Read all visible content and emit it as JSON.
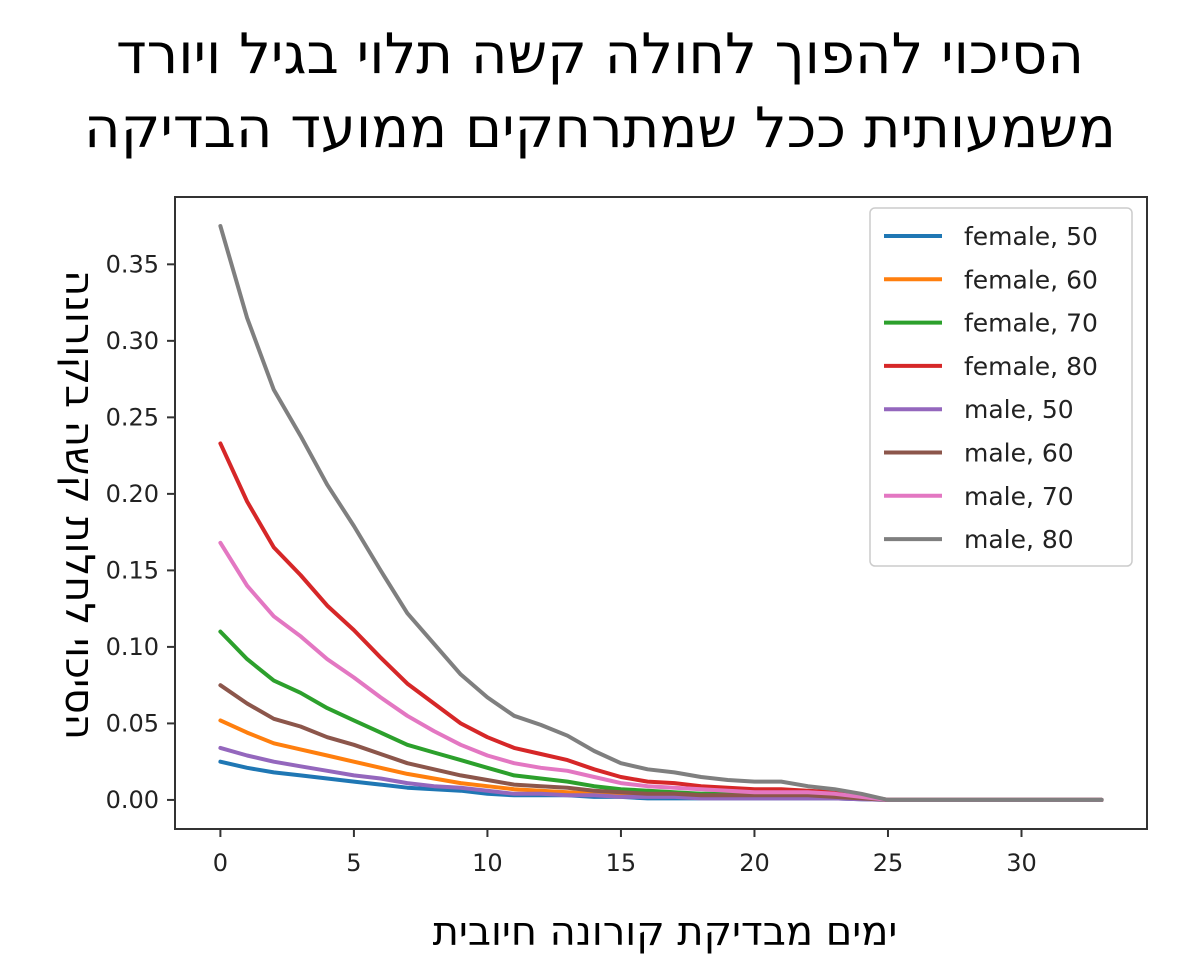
{
  "title_lines": [
    "הסיכוי להפוך לחולה קשה תלוי בגיל ויורד",
    "משמעותית ככל שמתרחקים ממועד הבדיקה"
  ],
  "chart_data": {
    "type": "line",
    "xlabel": "ימים מבדיקת קורונה חיובית",
    "ylabel": "הסיכוי לחלות קשה בקורונה",
    "xlim": [
      -1.7,
      34.7
    ],
    "ylim": [
      -0.019,
      0.394
    ],
    "xticks": [
      0,
      5,
      10,
      15,
      20,
      25,
      30
    ],
    "yticks": [
      0.0,
      0.05,
      0.1,
      0.15,
      0.2,
      0.25,
      0.3,
      0.35
    ],
    "ytick_labels": [
      "0.00",
      "0.05",
      "0.10",
      "0.15",
      "0.20",
      "0.25",
      "0.30",
      "0.35"
    ],
    "grid": false,
    "legend_position": "top-right",
    "x": [
      0,
      1,
      2,
      3,
      4,
      5,
      6,
      7,
      8,
      9,
      10,
      11,
      12,
      13,
      14,
      15,
      16,
      17,
      18,
      19,
      20,
      21,
      22,
      23,
      24,
      25,
      26,
      27,
      28,
      29,
      30,
      31,
      32,
      33
    ],
    "series": [
      {
        "name": "female, 50",
        "color": "#1f77b4",
        "values": [
          0.025,
          0.021,
          0.018,
          0.016,
          0.014,
          0.012,
          0.01,
          0.008,
          0.007,
          0.006,
          0.004,
          0.003,
          0.003,
          0.003,
          0.002,
          0.002,
          0.001,
          0.001,
          0.001,
          0.001,
          0.001,
          0.001,
          0.001,
          0.001,
          0.0005,
          0,
          0,
          0,
          0,
          0,
          0,
          0,
          0,
          0
        ]
      },
      {
        "name": "female, 60",
        "color": "#ff7f0e",
        "values": [
          0.052,
          0.044,
          0.037,
          0.033,
          0.029,
          0.025,
          0.021,
          0.017,
          0.014,
          0.011,
          0.009,
          0.007,
          0.006,
          0.005,
          0.004,
          0.003,
          0.003,
          0.003,
          0.002,
          0.002,
          0.002,
          0.002,
          0.002,
          0.002,
          0.001,
          0,
          0,
          0,
          0,
          0,
          0,
          0,
          0,
          0
        ]
      },
      {
        "name": "female, 70",
        "color": "#2ca02c",
        "values": [
          0.11,
          0.092,
          0.078,
          0.07,
          0.06,
          0.052,
          0.044,
          0.036,
          0.031,
          0.026,
          0.021,
          0.016,
          0.014,
          0.012,
          0.009,
          0.007,
          0.006,
          0.005,
          0.004,
          0.004,
          0.003,
          0.003,
          0.003,
          0.003,
          0.002,
          0,
          0,
          0,
          0,
          0,
          0,
          0,
          0,
          0
        ]
      },
      {
        "name": "female, 80",
        "color": "#d62728",
        "values": [
          0.233,
          0.195,
          0.165,
          0.147,
          0.127,
          0.111,
          0.093,
          0.076,
          0.063,
          0.05,
          0.041,
          0.034,
          0.03,
          0.026,
          0.02,
          0.015,
          0.012,
          0.011,
          0.009,
          0.008,
          0.007,
          0.007,
          0.006,
          0.005,
          0.003,
          0,
          0,
          0,
          0,
          0,
          0,
          0,
          0,
          0
        ]
      },
      {
        "name": "male, 50",
        "color": "#9467bd",
        "values": [
          0.034,
          0.029,
          0.025,
          0.022,
          0.019,
          0.016,
          0.014,
          0.011,
          0.009,
          0.008,
          0.006,
          0.004,
          0.004,
          0.003,
          0.003,
          0.002,
          0.002,
          0.002,
          0.001,
          0.001,
          0.001,
          0.001,
          0.001,
          0.001,
          0.0005,
          0,
          0,
          0,
          0,
          0,
          0,
          0,
          0,
          0
        ]
      },
      {
        "name": "male, 60",
        "color": "#8c564b",
        "values": [
          0.075,
          0.063,
          0.053,
          0.048,
          0.041,
          0.036,
          0.03,
          0.024,
          0.02,
          0.016,
          0.013,
          0.01,
          0.009,
          0.008,
          0.006,
          0.005,
          0.004,
          0.004,
          0.003,
          0.003,
          0.003,
          0.003,
          0.003,
          0.002,
          0.001,
          0,
          0,
          0,
          0,
          0,
          0,
          0,
          0,
          0
        ]
      },
      {
        "name": "male, 70",
        "color": "#e377c2",
        "values": [
          0.168,
          0.14,
          0.12,
          0.107,
          0.092,
          0.08,
          0.067,
          0.055,
          0.045,
          0.036,
          0.029,
          0.024,
          0.021,
          0.019,
          0.015,
          0.011,
          0.009,
          0.008,
          0.007,
          0.006,
          0.005,
          0.005,
          0.005,
          0.004,
          0.002,
          0,
          0,
          0,
          0,
          0,
          0,
          0,
          0,
          0
        ]
      },
      {
        "name": "male, 80",
        "color": "#7f7f7f",
        "values": [
          0.375,
          0.315,
          0.268,
          0.238,
          0.206,
          0.179,
          0.15,
          0.122,
          0.102,
          0.082,
          0.067,
          0.055,
          0.049,
          0.042,
          0.032,
          0.024,
          0.02,
          0.018,
          0.015,
          0.013,
          0.012,
          0.012,
          0.009,
          0.007,
          0.004,
          0,
          0,
          0,
          0,
          0,
          0,
          0,
          0,
          0
        ]
      }
    ]
  }
}
